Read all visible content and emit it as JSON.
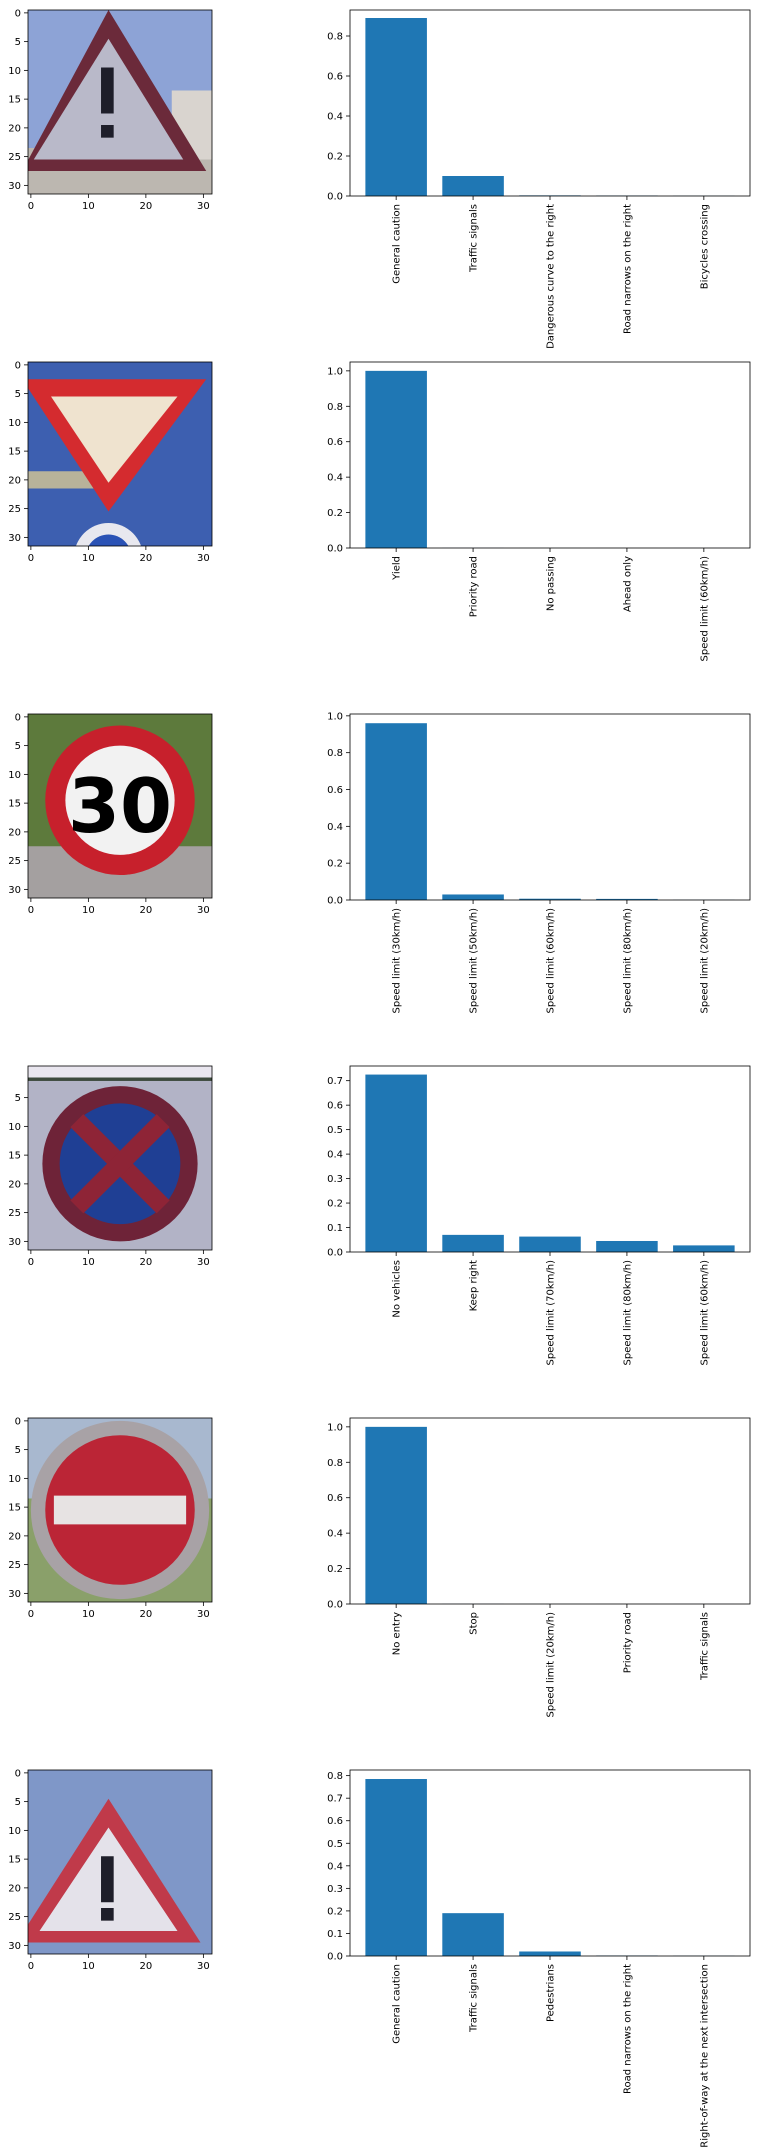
{
  "chart_data": [
    {
      "type": "image",
      "content": "warning triangle with exclamation mark",
      "xticks": [
        "0",
        "10",
        "20",
        "30"
      ],
      "yticks": [
        "0",
        "5",
        "10",
        "15",
        "20",
        "25",
        "30"
      ]
    },
    {
      "type": "bar",
      "categories": [
        "General caution",
        "Traffic signals",
        "Dangerous curve to the right",
        "Road narrows on the right",
        "Bicycles crossing"
      ],
      "values": [
        0.89,
        0.1,
        0.003,
        0.002,
        0.001
      ],
      "ylim": [
        0,
        0.93
      ],
      "yticks": [
        "0.0",
        "0.2",
        "0.4",
        "0.6",
        "0.8"
      ],
      "color": "#1f77b4"
    },
    {
      "type": "image",
      "content": "yield sign (inverted red triangle)",
      "xticks": [
        "0",
        "10",
        "20",
        "30"
      ],
      "yticks": [
        "0",
        "5",
        "10",
        "15",
        "20",
        "25",
        "30"
      ]
    },
    {
      "type": "bar",
      "categories": [
        "Yield",
        "Priority road",
        "No passing",
        "Ahead only",
        "Speed limit (60km/h)"
      ],
      "values": [
        1.0,
        0.0005,
        0.0003,
        0.0002,
        0.0001
      ],
      "ylim": [
        0,
        1.05
      ],
      "yticks": [
        "0.0",
        "0.2",
        "0.4",
        "0.6",
        "0.8",
        "1.0"
      ],
      "color": "#1f77b4"
    },
    {
      "type": "image",
      "content": "speed limit 30 sign",
      "xticks": [
        "0",
        "10",
        "20",
        "30"
      ],
      "yticks": [
        "0",
        "5",
        "10",
        "15",
        "20",
        "25",
        "30"
      ]
    },
    {
      "type": "bar",
      "categories": [
        "Speed limit (30km/h)",
        "Speed limit (50km/h)",
        "Speed limit (60km/h)",
        "Speed limit (80km/h)",
        "Speed limit (20km/h)"
      ],
      "values": [
        0.96,
        0.03,
        0.007,
        0.006,
        0.001
      ],
      "ylim": [
        0,
        1.01
      ],
      "yticks": [
        "0.0",
        "0.2",
        "0.4",
        "0.6",
        "0.8",
        "1.0"
      ],
      "color": "#1f77b4"
    },
    {
      "type": "image",
      "content": "no stopping sign (blue disc with red X)",
      "xticks": [
        "0",
        "10",
        "20",
        "30"
      ],
      "yticks": [
        "5",
        "10",
        "15",
        "20",
        "25",
        "30"
      ]
    },
    {
      "type": "bar",
      "categories": [
        "No vehicles",
        "Keep right",
        "Speed limit (70km/h)",
        "Speed limit (80km/h)",
        "Speed limit (60km/h)"
      ],
      "values": [
        0.725,
        0.07,
        0.063,
        0.045,
        0.027
      ],
      "ylim": [
        0,
        0.76
      ],
      "yticks": [
        "0.0",
        "0.1",
        "0.2",
        "0.3",
        "0.4",
        "0.5",
        "0.6",
        "0.7"
      ],
      "color": "#1f77b4"
    },
    {
      "type": "image",
      "content": "no entry sign (red disc with white bar)",
      "xticks": [
        "0",
        "10",
        "20",
        "30"
      ],
      "yticks": [
        "0",
        "5",
        "10",
        "15",
        "20",
        "25",
        "30"
      ]
    },
    {
      "type": "bar",
      "categories": [
        "No entry",
        "Stop",
        "Speed limit (20km/h)",
        "Priority road",
        "Traffic signals"
      ],
      "values": [
        1.0,
        0.0005,
        0.0003,
        0.0002,
        0.0001
      ],
      "ylim": [
        0,
        1.05
      ],
      "yticks": [
        "0.0",
        "0.2",
        "0.4",
        "0.6",
        "0.8",
        "1.0"
      ],
      "color": "#1f77b4"
    },
    {
      "type": "image",
      "content": "warning triangle with exclamation mark",
      "xticks": [
        "0",
        "10",
        "20",
        "30"
      ],
      "yticks": [
        "0",
        "5",
        "10",
        "15",
        "20",
        "25",
        "30"
      ]
    },
    {
      "type": "bar",
      "categories": [
        "General caution",
        "Traffic signals",
        "Pedestrians",
        "Road narrows on the right",
        "Right-of-way at the next intersection"
      ],
      "values": [
        0.785,
        0.19,
        0.02,
        0.002,
        0.001
      ],
      "ylim": [
        0,
        0.825
      ],
      "yticks": [
        "0.0",
        "0.1",
        "0.2",
        "0.3",
        "0.4",
        "0.5",
        "0.6",
        "0.7",
        "0.8"
      ],
      "color": "#1f77b4"
    }
  ]
}
